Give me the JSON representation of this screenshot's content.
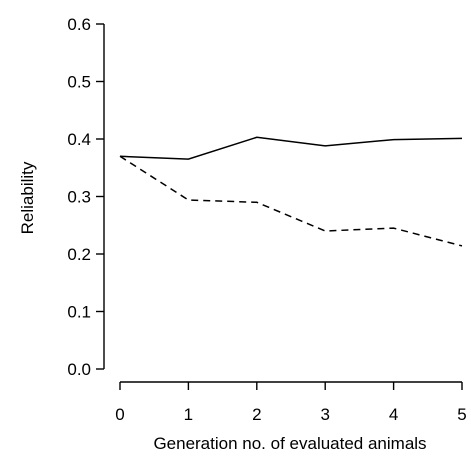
{
  "chart_data": {
    "type": "line",
    "title": "",
    "xlabel": "Generation no. of evaluated animals",
    "ylabel": "Reliability",
    "x": [
      0,
      1,
      2,
      3,
      4,
      5
    ],
    "xticks": [
      "0",
      "1",
      "2",
      "3",
      "4",
      "5"
    ],
    "yticks": [
      "0.0",
      "0.1",
      "0.2",
      "0.3",
      "0.4",
      "0.5",
      "0.6"
    ],
    "xlim": [
      0,
      5
    ],
    "ylim": [
      0,
      0.6
    ],
    "grid": false,
    "legend": "none",
    "series": [
      {
        "style": "solid",
        "color": "#000000",
        "values": [
          0.37,
          0.365,
          0.403,
          0.388,
          0.399,
          0.401
        ]
      },
      {
        "style": "dashed",
        "color": "#000000",
        "values": [
          0.37,
          0.294,
          0.29,
          0.24,
          0.245,
          0.214
        ]
      }
    ]
  }
}
